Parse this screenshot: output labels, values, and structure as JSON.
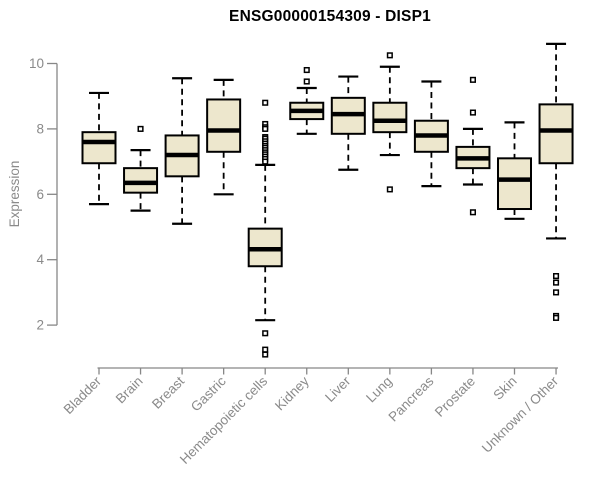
{
  "page": {
    "background": "#ffffff"
  },
  "chart_data": {
    "type": "boxplot",
    "title": "ENSG00000154309 - DISP1",
    "ylabel": "Expression",
    "xlabel": "",
    "yticks": [
      2,
      4,
      6,
      8,
      10
    ],
    "ylim": [
      1.0,
      10.7
    ],
    "grid": false,
    "legend": "none",
    "categories": [
      "Bladder",
      "Brain",
      "Breast",
      "Gastric",
      "Hematopoietic cells",
      "Kidney",
      "Liver",
      "Lung",
      "Pancreas",
      "Prostate",
      "Skin",
      "Unknown / Other"
    ],
    "series": [
      {
        "name": "Bladder",
        "whisker_low": 5.7,
        "q1": 6.95,
        "median": 7.6,
        "q3": 7.9,
        "whisker_high": 9.1,
        "outliers": []
      },
      {
        "name": "Brain",
        "whisker_low": 5.5,
        "q1": 6.05,
        "median": 6.35,
        "q3": 6.8,
        "whisker_high": 7.35,
        "outliers": [
          8.0
        ]
      },
      {
        "name": "Breast",
        "whisker_low": 5.1,
        "q1": 6.55,
        "median": 7.2,
        "q3": 7.8,
        "whisker_high": 9.55,
        "outliers": []
      },
      {
        "name": "Gastric",
        "whisker_low": 6.0,
        "q1": 7.3,
        "median": 7.95,
        "q3": 8.9,
        "whisker_high": 9.5,
        "outliers": []
      },
      {
        "name": "Hematopoietic cells",
        "whisker_low": 2.15,
        "q1": 3.8,
        "median": 4.32,
        "q3": 4.95,
        "whisker_high": 6.9,
        "outliers": [
          8.8,
          8.15,
          8.05,
          8.0,
          7.75,
          7.7,
          7.62,
          7.55,
          7.48,
          7.42,
          7.35,
          7.28,
          7.22,
          7.15,
          7.08,
          7.0,
          1.75,
          1.25,
          1.1
        ]
      },
      {
        "name": "Kidney",
        "whisker_low": 7.85,
        "q1": 8.3,
        "median": 8.55,
        "q3": 8.8,
        "whisker_high": 9.25,
        "outliers": [
          9.8,
          9.45
        ]
      },
      {
        "name": "Liver",
        "whisker_low": 6.75,
        "q1": 7.85,
        "median": 8.45,
        "q3": 8.95,
        "whisker_high": 9.6,
        "outliers": []
      },
      {
        "name": "Lung",
        "whisker_low": 7.2,
        "q1": 7.9,
        "median": 8.25,
        "q3": 8.8,
        "whisker_high": 9.9,
        "outliers": [
          10.25,
          6.15
        ]
      },
      {
        "name": "Pancreas",
        "whisker_low": 6.25,
        "q1": 7.3,
        "median": 7.8,
        "q3": 8.25,
        "whisker_high": 9.45,
        "outliers": []
      },
      {
        "name": "Prostate",
        "whisker_low": 6.3,
        "q1": 6.8,
        "median": 7.1,
        "q3": 7.45,
        "whisker_high": 8.0,
        "outliers": [
          9.5,
          8.5,
          5.45
        ]
      },
      {
        "name": "Skin",
        "whisker_low": 5.25,
        "q1": 5.55,
        "median": 6.45,
        "q3": 7.1,
        "whisker_high": 8.2,
        "outliers": []
      },
      {
        "name": "Unknown / Other",
        "whisker_low": 4.65,
        "q1": 6.95,
        "median": 7.95,
        "q3": 8.75,
        "whisker_high": 10.6,
        "outliers": [
          3.5,
          3.3,
          3.0,
          2.28,
          2.22
        ]
      }
    ],
    "style": {
      "box_fill": "#EDE7CD",
      "box_stroke": "#000000",
      "median_color": "#000000",
      "whisker_color": "#000000",
      "outlier_fill": "#ffffff",
      "axis_color": "#878787",
      "label_color": "#8a8a8a",
      "title_color": "#000000"
    }
  }
}
